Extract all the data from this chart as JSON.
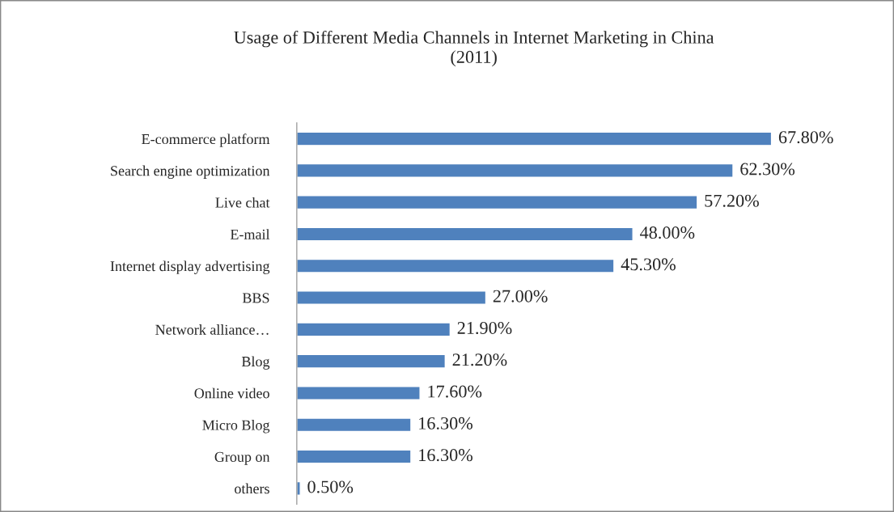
{
  "chart_data": {
    "type": "bar",
    "orientation": "horizontal",
    "title": "Usage of Different Media Channels in Internet Marketing in China\n(2011)",
    "categories": [
      "E-commerce platform",
      "Search engine optimization",
      "Live chat",
      "E-mail",
      "Internet display advertising",
      "BBS",
      "Network alliance…",
      "Blog",
      "Online video",
      "Micro Blog",
      "Group on",
      "others"
    ],
    "values": [
      67.8,
      62.3,
      57.2,
      48.0,
      45.3,
      27.0,
      21.9,
      21.2,
      17.6,
      16.3,
      16.3,
      0.5
    ],
    "value_labels": [
      "67.80%",
      "62.30%",
      "57.20%",
      "48.00%",
      "45.30%",
      "27.00%",
      "21.90%",
      "21.20%",
      "17.60%",
      "16.30%",
      "16.30%",
      "0.50%"
    ],
    "color": "#4f81bd",
    "grid": false,
    "legend": false
  }
}
